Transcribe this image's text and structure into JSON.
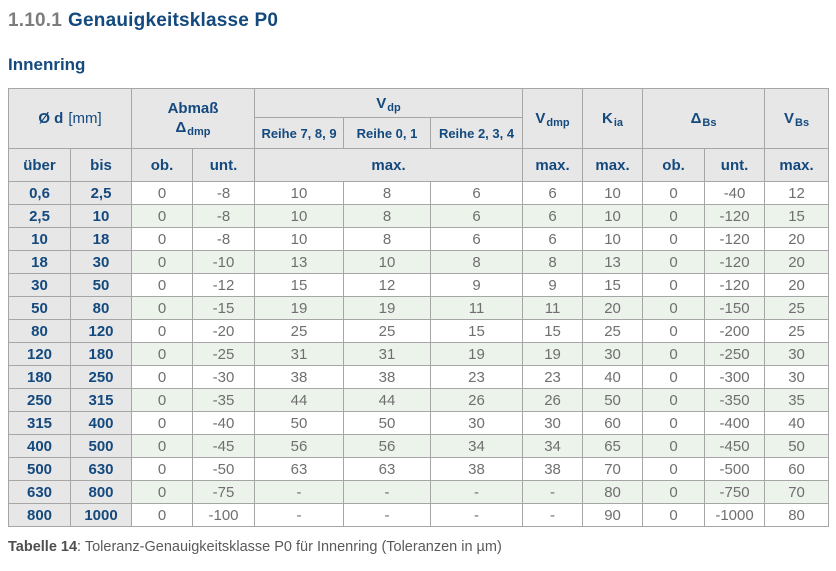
{
  "page": {
    "heading_number": "1.10.1",
    "heading_title": "Genauigkeitsklasse P0",
    "subheading": "Innenring",
    "caption_label": "Tabelle 14",
    "caption_text": ": Toleranz-Genauigkeitsklasse P0 für Innenring (Toleranzen in µm)"
  },
  "colors": {
    "accent_blue": "#14497E",
    "header_bg": "#E7E7E7",
    "row_green": "#ECF3EB",
    "row_white": "#FFFFFF",
    "grid_border": "#A6A6A6",
    "data_text": "#6F6F6F",
    "heading_number_gray": "#7D7D7D",
    "caption_gray": "#5A5A5A"
  },
  "table": {
    "headers": {
      "diameter": {
        "symbol": "Ø d",
        "unit": "[mm]"
      },
      "abmass": {
        "line1": "Abmaß",
        "symbol": "Δ",
        "sub": "dmp"
      },
      "vdp": {
        "main": "V",
        "sub": "dp"
      },
      "vdp_series": [
        "Reihe 7, 8, 9",
        "Reihe 0, 1",
        "Reihe 2, 3, 4"
      ],
      "vdmp": {
        "main": "V",
        "sub": "dmp"
      },
      "kia": {
        "main": "K",
        "sub": "ia"
      },
      "dbs": {
        "main": "Δ",
        "sub": "Bs"
      },
      "vbs": {
        "main": "V",
        "sub": "Bs"
      },
      "sub_row": [
        "über",
        "bis",
        "ob.",
        "unt.",
        "max.",
        "max.",
        "max.",
        "ob.",
        "unt.",
        "max."
      ]
    },
    "rows": [
      [
        "0,6",
        "2,5",
        "0",
        "-8",
        "10",
        "8",
        "6",
        "6",
        "10",
        "0",
        "-40",
        "12"
      ],
      [
        "2,5",
        "10",
        "0",
        "-8",
        "10",
        "8",
        "6",
        "6",
        "10",
        "0",
        "-120",
        "15"
      ],
      [
        "10",
        "18",
        "0",
        "-8",
        "10",
        "8",
        "6",
        "6",
        "10",
        "0",
        "-120",
        "20"
      ],
      [
        "18",
        "30",
        "0",
        "-10",
        "13",
        "10",
        "8",
        "8",
        "13",
        "0",
        "-120",
        "20"
      ],
      [
        "30",
        "50",
        "0",
        "-12",
        "15",
        "12",
        "9",
        "9",
        "15",
        "0",
        "-120",
        "20"
      ],
      [
        "50",
        "80",
        "0",
        "-15",
        "19",
        "19",
        "11",
        "11",
        "20",
        "0",
        "-150",
        "25"
      ],
      [
        "80",
        "120",
        "0",
        "-20",
        "25",
        "25",
        "15",
        "15",
        "25",
        "0",
        "-200",
        "25"
      ],
      [
        "120",
        "180",
        "0",
        "-25",
        "31",
        "31",
        "19",
        "19",
        "30",
        "0",
        "-250",
        "30"
      ],
      [
        "180",
        "250",
        "0",
        "-30",
        "38",
        "38",
        "23",
        "23",
        "40",
        "0",
        "-300",
        "30"
      ],
      [
        "250",
        "315",
        "0",
        "-35",
        "44",
        "44",
        "26",
        "26",
        "50",
        "0",
        "-350",
        "35"
      ],
      [
        "315",
        "400",
        "0",
        "-40",
        "50",
        "50",
        "30",
        "30",
        "60",
        "0",
        "-400",
        "40"
      ],
      [
        "400",
        "500",
        "0",
        "-45",
        "56",
        "56",
        "34",
        "34",
        "65",
        "0",
        "-450",
        "50"
      ],
      [
        "500",
        "630",
        "0",
        "-50",
        "63",
        "63",
        "38",
        "38",
        "70",
        "0",
        "-500",
        "60"
      ],
      [
        "630",
        "800",
        "0",
        "-75",
        "-",
        "-",
        "-",
        "-",
        "80",
        "0",
        "-750",
        "70"
      ],
      [
        "800",
        "1000",
        "0",
        "-100",
        "-",
        "-",
        "-",
        "-",
        "90",
        "0",
        "-1000",
        "80"
      ]
    ]
  }
}
